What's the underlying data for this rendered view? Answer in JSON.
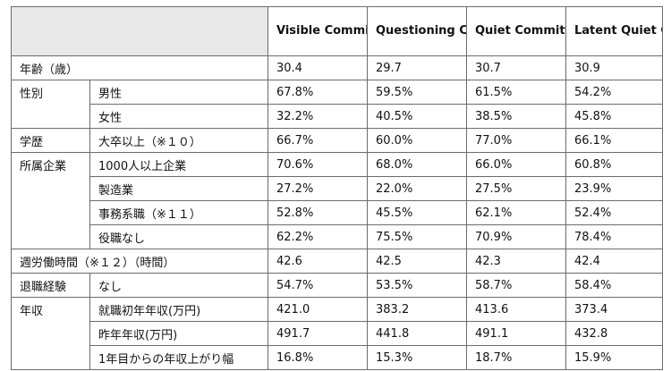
{
  "table": {
    "columns": [
      "Visible Committing",
      "Questioning Committing",
      "Quiet Committing",
      "Latent Quiet Quitting"
    ],
    "rows": [
      {
        "group": "年齢（歳）",
        "sub": "",
        "values": [
          "30.4",
          "29.7",
          "30.7",
          "30.9"
        ]
      },
      {
        "group": "性別",
        "sub": "男性",
        "values": [
          "67.8%",
          "59.5%",
          "61.5%",
          "54.2%"
        ]
      },
      {
        "group": "",
        "sub": "女性",
        "values": [
          "32.2%",
          "40.5%",
          "38.5%",
          "45.8%"
        ]
      },
      {
        "group": "学歴",
        "sub": "大卒以上（※１０）",
        "values": [
          "66.7%",
          "60.0%",
          "77.0%",
          "66.1%"
        ]
      },
      {
        "group": "所属企業",
        "sub": "1000人以上企業",
        "values": [
          "70.6%",
          "68.0%",
          "66.0%",
          "60.8%"
        ]
      },
      {
        "group": "",
        "sub": "製造業",
        "values": [
          "27.2%",
          "22.0%",
          "27.5%",
          "23.9%"
        ]
      },
      {
        "group": "",
        "sub": "事務系職（※１１）",
        "values": [
          "52.8%",
          "45.5%",
          "62.1%",
          "52.4%"
        ]
      },
      {
        "group": "",
        "sub": "役職なし",
        "values": [
          "62.2%",
          "75.5%",
          "70.9%",
          "78.4%"
        ]
      },
      {
        "group": "週労働時間（※１２）（時間）",
        "sub": "",
        "values": [
          "42.6",
          "42.5",
          "42.3",
          "42.4"
        ]
      },
      {
        "group": "退職経験",
        "sub": "なし",
        "values": [
          "54.7%",
          "53.5%",
          "58.7%",
          "58.4%"
        ]
      },
      {
        "group": "年収",
        "sub": "就職初年年収(万円)",
        "values": [
          "421.0",
          "383.2",
          "413.6",
          "373.4"
        ]
      },
      {
        "group": "",
        "sub": "昨年年収(万円)",
        "values": [
          "491.7",
          "441.8",
          "491.1",
          "432.8"
        ]
      },
      {
        "group": "",
        "sub": "1年目からの年収上がり幅",
        "values": [
          "16.8%",
          "15.3%",
          "18.7%",
          "15.9%"
        ]
      }
    ]
  }
}
